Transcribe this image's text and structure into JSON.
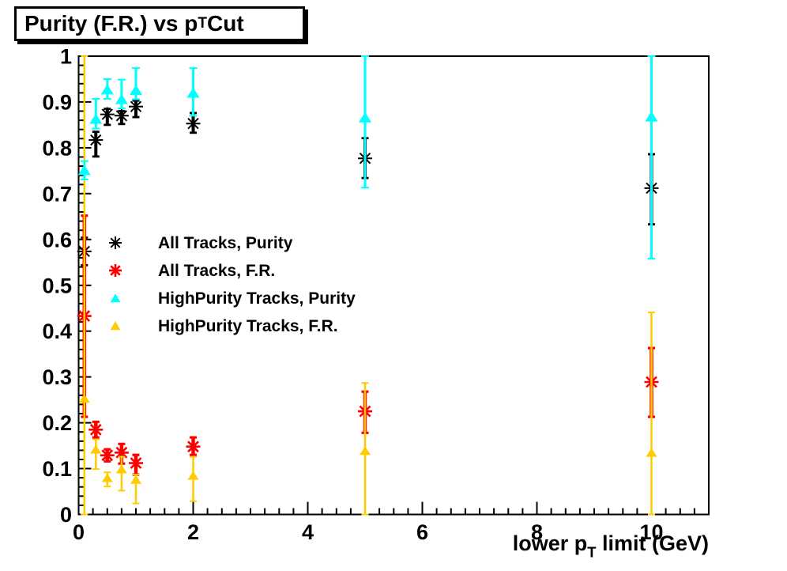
{
  "title": {
    "pre": "Purity (F.R.) vs p",
    "sub": "T",
    "post": " Cut"
  },
  "x_axis_title": {
    "pre": "lower p",
    "sub": "T",
    "post": " limit (GeV)"
  },
  "chart_data": {
    "type": "scatter",
    "title": "Purity (F.R.) vs p_T Cut",
    "xlabel": "lower p_T limit (GeV)",
    "ylabel": "",
    "xlim": [
      0,
      11
    ],
    "ylim": [
      0,
      1
    ],
    "grid": false,
    "legend_position": "left-middle",
    "xtick_values": [
      0,
      2,
      4,
      6,
      8,
      10
    ],
    "xtick_labels": [
      "0",
      "2",
      "4",
      "6",
      "8",
      "10"
    ],
    "x_minor_step": 0.25,
    "ytick_values": [
      0,
      0.1,
      0.2,
      0.3,
      0.4,
      0.5,
      0.6,
      0.7,
      0.8,
      0.9,
      1
    ],
    "ytick_labels": [
      "0",
      "0.1",
      "0.2",
      "0.3",
      "0.4",
      "0.5",
      "0.6",
      "0.7",
      "0.8",
      "0.9",
      "1"
    ],
    "y_minor_step": 0.02,
    "series": [
      {
        "name": "All Tracks, Purity",
        "marker": "asterisk",
        "color": "#000000",
        "x": [
          0.1,
          0.3,
          0.5,
          0.75,
          1,
          2,
          5,
          10
        ],
        "y": [
          0.574,
          0.817,
          0.873,
          0.87,
          0.89,
          0.853,
          0.777,
          0.712
        ],
        "ey_low": [
          0.03,
          0.036,
          0.023,
          0.018,
          0.023,
          0.02,
          0.043,
          0.079
        ],
        "ey_high": [
          0.03,
          0.018,
          0.012,
          0.01,
          0.013,
          0.023,
          0.044,
          0.074
        ]
      },
      {
        "name": "All Tracks, F.R.",
        "marker": "asterisk",
        "color": "#FF0000",
        "x": [
          0.1,
          0.3,
          0.5,
          0.75,
          1,
          2,
          5,
          10
        ],
        "y": [
          0.433,
          0.185,
          0.129,
          0.135,
          0.112,
          0.148,
          0.225,
          0.289
        ],
        "ey_low": [
          0.22,
          0.017,
          0.013,
          0.024,
          0.025,
          0.018,
          0.047,
          0.076
        ],
        "ey_high": [
          0.219,
          0.017,
          0.013,
          0.019,
          0.018,
          0.02,
          0.043,
          0.074
        ]
      },
      {
        "name": "HighPurity Tracks, Purity",
        "marker": "triangle",
        "color": "#00FFFF",
        "x": [
          0.1,
          0.3,
          0.5,
          0.75,
          1,
          2,
          5,
          10
        ],
        "y": [
          0.749,
          0.861,
          0.925,
          0.904,
          0.924,
          0.918,
          0.864,
          0.866
        ],
        "ey_low": [
          0.018,
          0.019,
          0.018,
          0.018,
          0.018,
          0.048,
          0.151,
          0.308
        ],
        "ey_high": [
          0.022,
          0.046,
          0.025,
          0.045,
          0.05,
          0.056,
          0.136,
          0.134
        ]
      },
      {
        "name": "HighPurity Tracks, F.R.",
        "marker": "triangle",
        "color": "#FFCC00",
        "x": [
          0.1,
          0.3,
          0.5,
          0.75,
          1,
          2,
          5,
          10
        ],
        "y": [
          0.251,
          0.14,
          0.078,
          0.097,
          0.074,
          0.083,
          0.137,
          0.133
        ],
        "ey_low": [
          0.251,
          0.041,
          0.017,
          0.045,
          0.05,
          0.054,
          0.137,
          0.133
        ],
        "ey_high": [
          0.749,
          0.024,
          0.014,
          0.029,
          0.013,
          0.043,
          0.15,
          0.308
        ]
      }
    ]
  }
}
